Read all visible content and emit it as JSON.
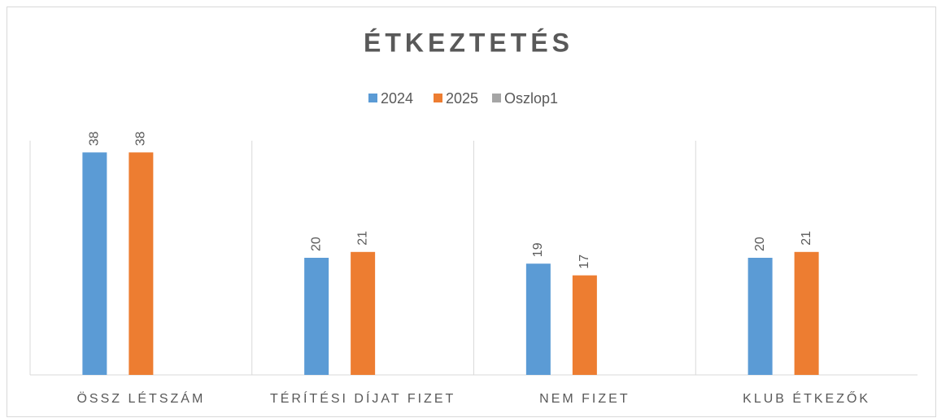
{
  "chart_data": {
    "type": "bar",
    "title": "ÉTKEZTETÉS",
    "categories": [
      "ÖSSZ LÉTSZÁM",
      "TÉRÍTÉSI DÍJAT FIZET",
      "NEM FIZET",
      "KLUB ÉTKEZŐK"
    ],
    "series": [
      {
        "name": "2024",
        "color": "#5b9bd5",
        "values": [
          38,
          20,
          19,
          20
        ]
      },
      {
        "name": "2025",
        "color": "#ed7d31",
        "values": [
          38,
          21,
          17,
          21
        ]
      },
      {
        "name": "Oszlop1",
        "color": "#a5a5a5",
        "values": [
          null,
          null,
          null,
          null
        ]
      }
    ],
    "ylim": [
      0,
      40
    ],
    "legend": "top"
  }
}
